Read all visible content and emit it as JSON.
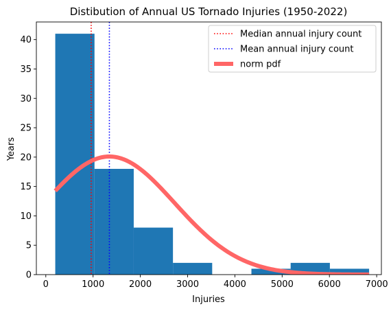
{
  "chart_data": {
    "type": "bar",
    "title": "Distibution of Annual US Tornado Injuries (1950-2022)",
    "xlabel": "Injuries",
    "ylabel": "Years",
    "xlim": [
      -200,
      7100
    ],
    "ylim": [
      0,
      43
    ],
    "xticks": [
      0,
      1000,
      2000,
      3000,
      4000,
      5000,
      6000,
      7000
    ],
    "yticks": [
      0,
      5,
      10,
      15,
      20,
      25,
      30,
      35,
      40
    ],
    "histogram": {
      "name": "",
      "color": "#1f77b4",
      "bins": [
        {
          "start": 200,
          "end": 1030,
          "count": 41
        },
        {
          "start": 1030,
          "end": 1860,
          "count": 18
        },
        {
          "start": 1860,
          "end": 2690,
          "count": 8
        },
        {
          "start": 2690,
          "end": 3520,
          "count": 2
        },
        {
          "start": 3520,
          "end": 4350,
          "count": 0
        },
        {
          "start": 4350,
          "end": 5180,
          "count": 1
        },
        {
          "start": 5180,
          "end": 6010,
          "count": 2
        },
        {
          "start": 6010,
          "end": 6840,
          "count": 1
        }
      ]
    },
    "vlines": [
      {
        "name": "Median annual injury count",
        "x": 960,
        "color": "#ff0000",
        "style": "dotted"
      },
      {
        "name": "Mean annual injury count",
        "x": 1345,
        "color": "#0000ff",
        "style": "dotted"
      }
    ],
    "curve": {
      "name": "norm pdf",
      "color": "#ff6666",
      "mean": 1345,
      "std": 1380,
      "peak": 20.1,
      "x_range": [
        200,
        6840
      ]
    },
    "legend": {
      "position": "top-right",
      "entries": [
        "Median annual injury count",
        "Mean annual injury count",
        "norm pdf"
      ]
    }
  }
}
